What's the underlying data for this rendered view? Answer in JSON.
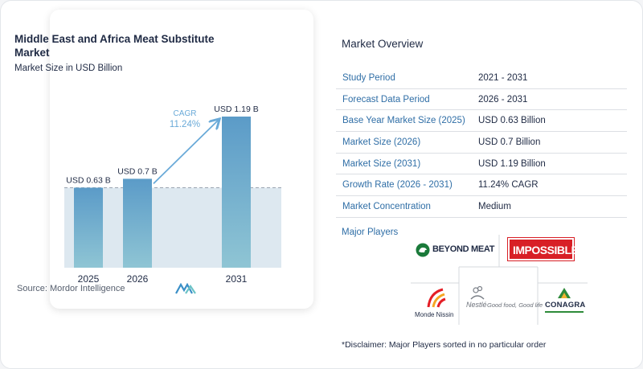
{
  "chart_data": {
    "type": "bar",
    "title": "Middle East and Africa Meat Substitute Market",
    "subtitle": "Market Size in USD Billion",
    "categories": [
      "2025",
      "2026",
      "2031"
    ],
    "values": [
      0.63,
      0.7,
      1.19
    ],
    "data_labels": [
      "USD 0.63 B",
      "USD 0.7 B",
      "USD 1.19 B"
    ],
    "cagr_label": "CAGR",
    "cagr_value": "11.24%",
    "ylim": [
      0,
      1.3
    ],
    "colors": {
      "bar_top": "#5b9bc8",
      "bar_bottom": "#8fc5d4",
      "band": "#dde8f0",
      "arrow": "#6aaad8",
      "dashed": "#9aa5b1"
    }
  },
  "left": {
    "title": "Middle East and Africa Meat Substitute Market",
    "subtitle": "Market Size in USD Billion",
    "source": "Source: Mordor Intelligence"
  },
  "overview": {
    "title": "Market Overview",
    "rows": [
      {
        "label": "Study Period",
        "value": "2021 - 2031"
      },
      {
        "label": "Forecast Data Period",
        "value": "2026 - 2031"
      },
      {
        "label": "Base Year Market Size (2025)",
        "value": "USD 0.63 Billion"
      },
      {
        "label": "Market Size (2026)",
        "value": "USD 0.7 Billion"
      },
      {
        "label": "Market Size (2031)",
        "value": "USD 1.19 Billion"
      },
      {
        "label": "Growth Rate (2026 - 2031)",
        "value": "11.24% CAGR"
      },
      {
        "label": "Market Concentration",
        "value": "Medium"
      }
    ],
    "players_label": "Major Players",
    "players": {
      "beyond": "BEYOND MEAT",
      "impossible": "IMPOSSIBLE",
      "monde": "Monde Nissin",
      "nestle": "Nestlé",
      "nestle_tag": "Good food, Good life",
      "conagra": "CONAGRA"
    },
    "disclaimer": "*Disclaimer: Major Players sorted in no particular order"
  }
}
